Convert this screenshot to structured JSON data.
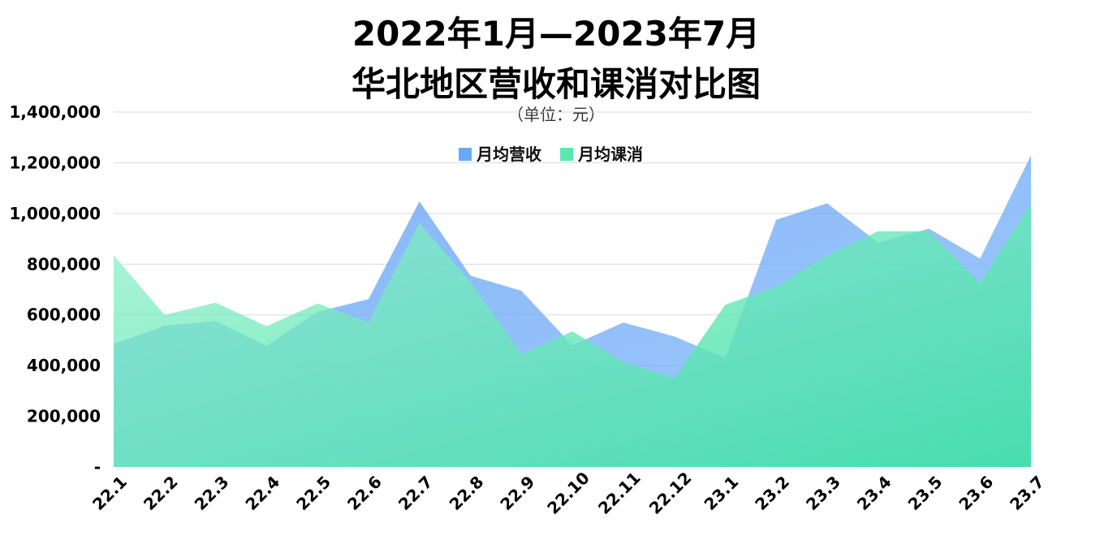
{
  "chart_data": {
    "type": "area",
    "title_lines": [
      "2022年1月—2023年7月",
      "华北地区营收和课消对比图"
    ],
    "subtitle": "（单位：元）",
    "categories": [
      "22.1",
      "22.2",
      "22.3",
      "22.4",
      "22.5",
      "22.6",
      "22.7",
      "22.8",
      "22.9",
      "22.10",
      "22.11",
      "22.12",
      "23.1",
      "23.2",
      "23.3",
      "23.4",
      "23.5",
      "23.6",
      "23.7"
    ],
    "series": [
      {
        "name": "月均营收",
        "values": [
          485000,
          558000,
          575000,
          478000,
          612000,
          662000,
          1048000,
          755000,
          695000,
          480000,
          570000,
          515000,
          430000,
          975000,
          1040000,
          885000,
          940000,
          822000,
          1230000
        ],
        "color": "#6aa8f7"
      },
      {
        "name": "月均课消",
        "values": [
          835000,
          600000,
          648000,
          555000,
          645000,
          572000,
          962000,
          730000,
          445000,
          535000,
          415000,
          350000,
          640000,
          712000,
          835000,
          930000,
          930000,
          725000,
          1040000
        ],
        "color": "#5ee6b0"
      }
    ],
    "y_tick_labels": [
      "-",
      "200,000",
      "400,000",
      "600,000",
      "800,000",
      "1,000,000",
      "1,200,000",
      "1,400,000"
    ],
    "ylim": [
      0,
      1400000
    ],
    "legend_position": "top-center",
    "grid": true
  }
}
